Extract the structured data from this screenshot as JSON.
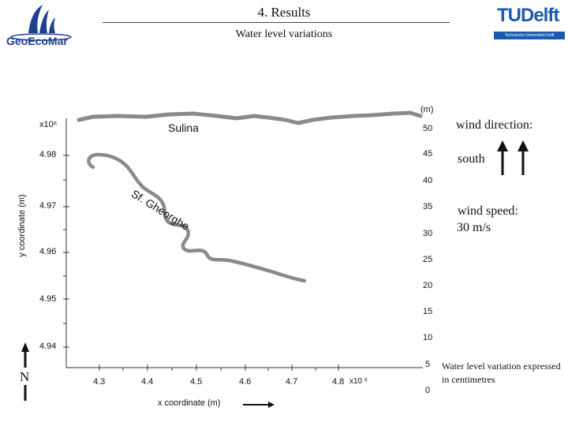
{
  "header": {
    "title": "4. Results",
    "subtitle": "Water level variations",
    "left_logo_text": "GeoEcoMar",
    "right_logo_text": "TUDelft",
    "right_logo_tagline": "Technische Universiteit Delft"
  },
  "plot": {
    "y_axis_label": "y coordinate (m)",
    "x_axis_label": "x coordinate (m)",
    "y_multiplier": "x10⁶",
    "x_multiplier": "x10 ⁶",
    "y_ticks": [
      "4.98",
      "4.97",
      "4.96",
      "4.95",
      "4.94"
    ],
    "x_ticks": [
      "4.3",
      "4.4",
      "4.5",
      "4.6",
      "4.7",
      "4.8"
    ],
    "place_labels": {
      "sulina": "Sulina",
      "st_gheorghe": "Sf. Gheorghe"
    },
    "north_label": "N",
    "water_color": "#8a8a8a"
  },
  "color_scale": {
    "unit": "(m)",
    "labels": [
      "50",
      "45",
      "40",
      "35",
      "30",
      "25",
      "20",
      "15",
      "10",
      "5",
      "0"
    ]
  },
  "sidebar": {
    "wind_direction_label": "wind direction:",
    "wind_direction_value": "south",
    "wind_speed_label": "wind speed:",
    "wind_speed_value": "30 m/s",
    "note": "Water level variation expressed in centimetres"
  },
  "colors": {
    "logo_blue": "#1f3f8f",
    "tudelft_blue": "#1a5bb0"
  }
}
